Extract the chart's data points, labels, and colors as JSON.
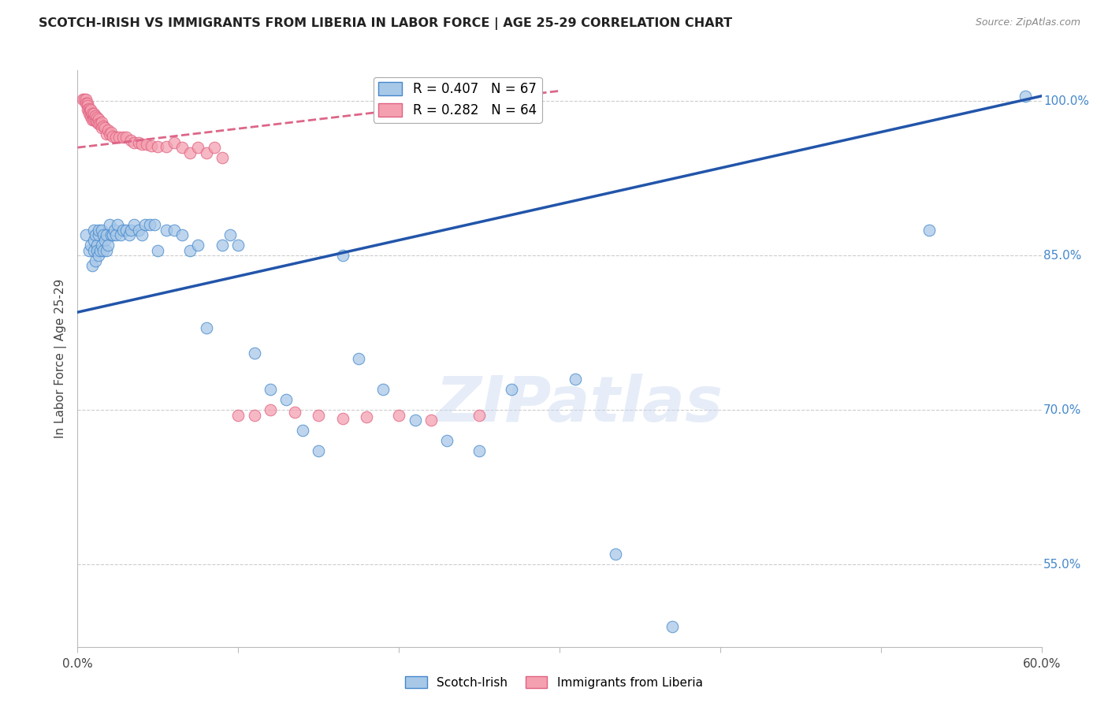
{
  "title": "SCOTCH-IRISH VS IMMIGRANTS FROM LIBERIA IN LABOR FORCE | AGE 25-29 CORRELATION CHART",
  "source": "Source: ZipAtlas.com",
  "ylabel": "In Labor Force | Age 25-29",
  "xlim": [
    0.0,
    0.6
  ],
  "ylim": [
    0.47,
    1.03
  ],
  "xtick_positions": [
    0.0,
    0.1,
    0.2,
    0.3,
    0.4,
    0.5,
    0.6
  ],
  "xticklabels": [
    "0.0%",
    "",
    "",
    "",
    "",
    "",
    "60.0%"
  ],
  "yticks_right": [
    0.55,
    0.7,
    0.85,
    1.0
  ],
  "ytick_right_labels": [
    "55.0%",
    "70.0%",
    "85.0%",
    "100.0%"
  ],
  "blue_R": 0.407,
  "blue_N": 67,
  "pink_R": 0.282,
  "pink_N": 64,
  "blue_color": "#a8c8e8",
  "pink_color": "#f4a0b0",
  "blue_edge_color": "#4488cc",
  "pink_edge_color": "#e06080",
  "blue_line_color": "#2255aa",
  "pink_line_color": "#dd6688",
  "grid_color": "#cccccc",
  "blue_line_x0": 0.0,
  "blue_line_y0": 0.795,
  "blue_line_x1": 0.6,
  "blue_line_y1": 1.005,
  "pink_line_x0": 0.0,
  "pink_line_y0": 0.955,
  "pink_line_x1": 0.3,
  "pink_line_y1": 1.01,
  "blue_scatter_x": [
    0.005,
    0.007,
    0.008,
    0.009,
    0.01,
    0.01,
    0.01,
    0.011,
    0.011,
    0.012,
    0.012,
    0.013,
    0.013,
    0.013,
    0.014,
    0.015,
    0.015,
    0.016,
    0.016,
    0.017,
    0.018,
    0.018,
    0.019,
    0.02,
    0.021,
    0.022,
    0.023,
    0.024,
    0.025,
    0.027,
    0.028,
    0.03,
    0.032,
    0.033,
    0.035,
    0.038,
    0.04,
    0.042,
    0.045,
    0.048,
    0.05,
    0.055,
    0.06,
    0.065,
    0.07,
    0.075,
    0.08,
    0.09,
    0.095,
    0.1,
    0.11,
    0.12,
    0.13,
    0.14,
    0.15,
    0.165,
    0.175,
    0.19,
    0.21,
    0.23,
    0.25,
    0.27,
    0.31,
    0.335,
    0.37,
    0.53,
    0.59
  ],
  "blue_scatter_y": [
    0.87,
    0.855,
    0.86,
    0.84,
    0.855,
    0.875,
    0.865,
    0.87,
    0.845,
    0.86,
    0.855,
    0.87,
    0.85,
    0.875,
    0.855,
    0.875,
    0.86,
    0.87,
    0.855,
    0.865,
    0.855,
    0.87,
    0.86,
    0.88,
    0.87,
    0.87,
    0.875,
    0.87,
    0.88,
    0.87,
    0.875,
    0.875,
    0.87,
    0.875,
    0.88,
    0.875,
    0.87,
    0.88,
    0.88,
    0.88,
    0.855,
    0.875,
    0.875,
    0.87,
    0.855,
    0.86,
    0.78,
    0.86,
    0.87,
    0.86,
    0.755,
    0.72,
    0.71,
    0.68,
    0.66,
    0.85,
    0.75,
    0.72,
    0.69,
    0.67,
    0.66,
    0.72,
    0.73,
    0.56,
    0.49,
    0.875,
    1.005
  ],
  "pink_scatter_x": [
    0.003,
    0.004,
    0.005,
    0.005,
    0.006,
    0.006,
    0.006,
    0.007,
    0.007,
    0.007,
    0.008,
    0.008,
    0.008,
    0.009,
    0.009,
    0.009,
    0.01,
    0.01,
    0.01,
    0.011,
    0.011,
    0.012,
    0.012,
    0.013,
    0.013,
    0.014,
    0.015,
    0.015,
    0.016,
    0.017,
    0.018,
    0.019,
    0.02,
    0.021,
    0.022,
    0.024,
    0.026,
    0.028,
    0.03,
    0.033,
    0.035,
    0.038,
    0.04,
    0.043,
    0.046,
    0.05,
    0.055,
    0.06,
    0.065,
    0.07,
    0.075,
    0.08,
    0.085,
    0.09,
    0.1,
    0.11,
    0.12,
    0.135,
    0.15,
    0.165,
    0.18,
    0.2,
    0.22,
    0.25
  ],
  "pink_scatter_y": [
    1.002,
    1.002,
    1.002,
    0.998,
    0.998,
    0.996,
    0.992,
    0.993,
    0.99,
    0.988,
    0.99,
    0.985,
    0.992,
    0.986,
    0.988,
    0.982,
    0.985,
    0.982,
    0.988,
    0.982,
    0.986,
    0.984,
    0.98,
    0.983,
    0.978,
    0.978,
    0.98,
    0.974,
    0.976,
    0.974,
    0.968,
    0.972,
    0.968,
    0.97,
    0.966,
    0.965,
    0.965,
    0.965,
    0.965,
    0.962,
    0.96,
    0.96,
    0.958,
    0.958,
    0.957,
    0.956,
    0.956,
    0.96,
    0.955,
    0.95,
    0.955,
    0.95,
    0.955,
    0.945,
    0.695,
    0.695,
    0.7,
    0.698,
    0.695,
    0.692,
    0.693,
    0.695,
    0.69,
    0.695
  ]
}
